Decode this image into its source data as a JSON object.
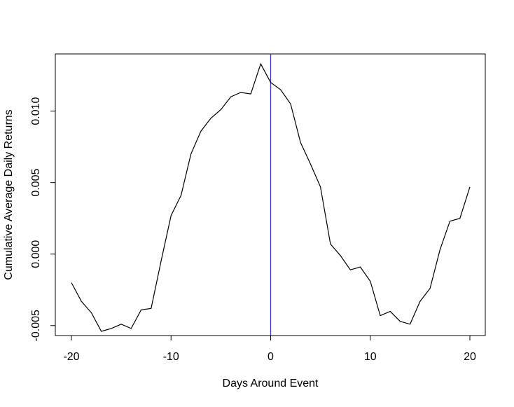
{
  "chart_data": {
    "type": "line",
    "title": "",
    "xlabel": "Days Around Event",
    "ylabel": "Cumulative Average Daily Returns",
    "xlim": [
      -20,
      20
    ],
    "ylim": [
      -0.0055,
      0.0138
    ],
    "x_ticks": [
      -20,
      -10,
      0,
      10,
      20
    ],
    "x_tick_labels": [
      "-20",
      "-10",
      "0",
      "10",
      "20"
    ],
    "y_ticks": [
      -0.005,
      0.0,
      0.005,
      0.01
    ],
    "y_tick_labels": [
      "-0.005",
      "0.000",
      "0.005",
      "0.010"
    ],
    "grid": false,
    "vline": {
      "x": 0,
      "color": "#3b3bb8"
    },
    "series": [
      {
        "line_color": "#000000",
        "x": [
          -20,
          -19,
          -18,
          -17,
          -16,
          -15,
          -14,
          -13,
          -12,
          -11,
          -10,
          -9,
          -8,
          -7,
          -6,
          -5,
          -4,
          -3,
          -2,
          -1,
          0,
          1,
          2,
          3,
          4,
          5,
          6,
          7,
          8,
          9,
          10,
          11,
          12,
          13,
          14,
          15,
          16,
          17,
          18,
          19,
          20
        ],
        "y": [
          -0.002,
          -0.0033,
          -0.0041,
          -0.0054,
          -0.0052,
          -0.0049,
          -0.0052,
          -0.0039,
          -0.0038,
          -0.0005,
          0.0027,
          0.0041,
          0.007,
          0.0086,
          0.0095,
          0.0101,
          0.011,
          0.0113,
          0.0112,
          0.0133,
          0.012,
          0.0115,
          0.0105,
          0.0078,
          0.0063,
          0.0047,
          0.0007,
          -0.0001,
          -0.0011,
          -0.0009,
          -0.0019,
          -0.0043,
          -0.004,
          -0.0047,
          -0.0049,
          -0.0033,
          -0.0024,
          0.0003,
          0.0023,
          0.0025,
          0.0047
        ]
      }
    ]
  }
}
